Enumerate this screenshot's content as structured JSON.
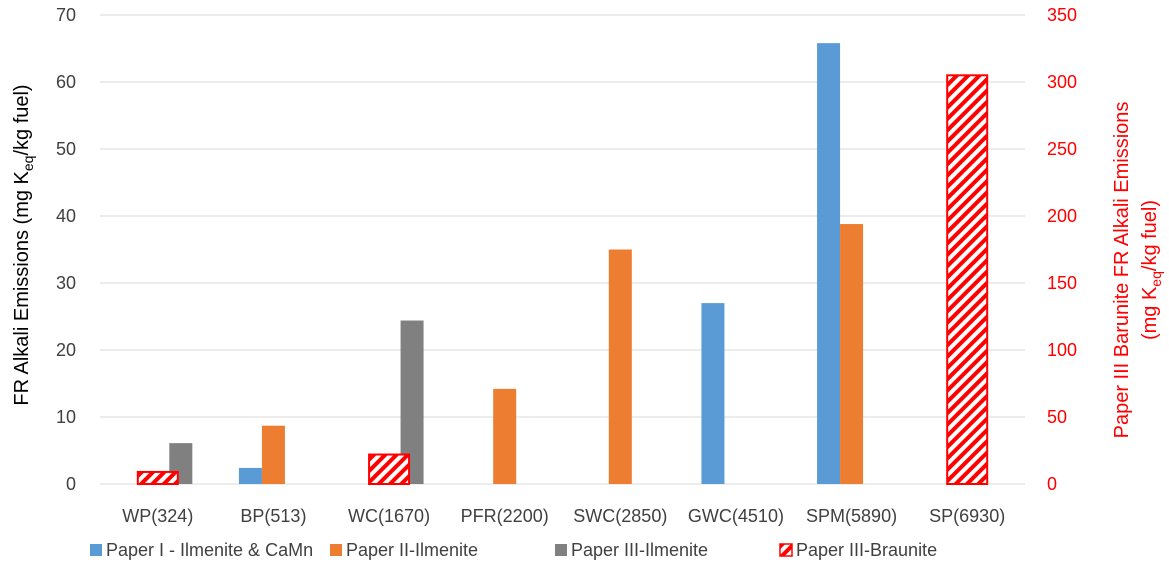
{
  "chart_data": {
    "type": "bar",
    "categories": [
      "WP(324)",
      "BP(513)",
      "WC(1670)",
      "PFR(2200)",
      "SWC(2850)",
      "GWC(4510)",
      "SPM(5890)",
      "SP(6930)"
    ],
    "series": [
      {
        "name": "Paper I - Ilmenite & CaMn",
        "axis": "left",
        "color": "#5b9bd5",
        "pattern": "solid",
        "values": [
          null,
          2.4,
          null,
          null,
          null,
          27.0,
          65.8,
          null
        ]
      },
      {
        "name": "Paper II-Ilmenite",
        "axis": "left",
        "color": "#ed7d31",
        "pattern": "solid",
        "values": [
          null,
          8.7,
          null,
          14.2,
          35.0,
          null,
          38.8,
          null
        ]
      },
      {
        "name": "Paper III-Ilmenite",
        "axis": "left",
        "color": "#808080",
        "pattern": "solid",
        "values": [
          6.1,
          null,
          24.4,
          null,
          null,
          null,
          null,
          null
        ]
      },
      {
        "name": "Paper III-Braunite",
        "axis": "right",
        "color": "#ff0000",
        "pattern": "diagonal-hatch",
        "values": [
          9,
          null,
          22,
          null,
          null,
          null,
          null,
          305
        ]
      }
    ],
    "y_left": {
      "label_main": "FR Alkali Emissions (mg K",
      "label_sub": "eq",
      "label_end": "/kg fuel)",
      "range": [
        0,
        70
      ],
      "ticks": [
        "0",
        "10",
        "20",
        "30",
        "40",
        "50",
        "60",
        "70"
      ]
    },
    "y_right": {
      "label_line1": "Paper III Barunite  FR Alkali Emissions",
      "label_line2_main": "(mg K",
      "label_line2_sub": "eq",
      "label_line2_end": "/kg fuel)",
      "range": [
        0,
        350
      ],
      "ticks": [
        "0",
        "50",
        "100",
        "150",
        "200",
        "250",
        "300",
        "350"
      ],
      "color": "#ff0000"
    },
    "gridlines": true,
    "legend_position": "bottom"
  }
}
